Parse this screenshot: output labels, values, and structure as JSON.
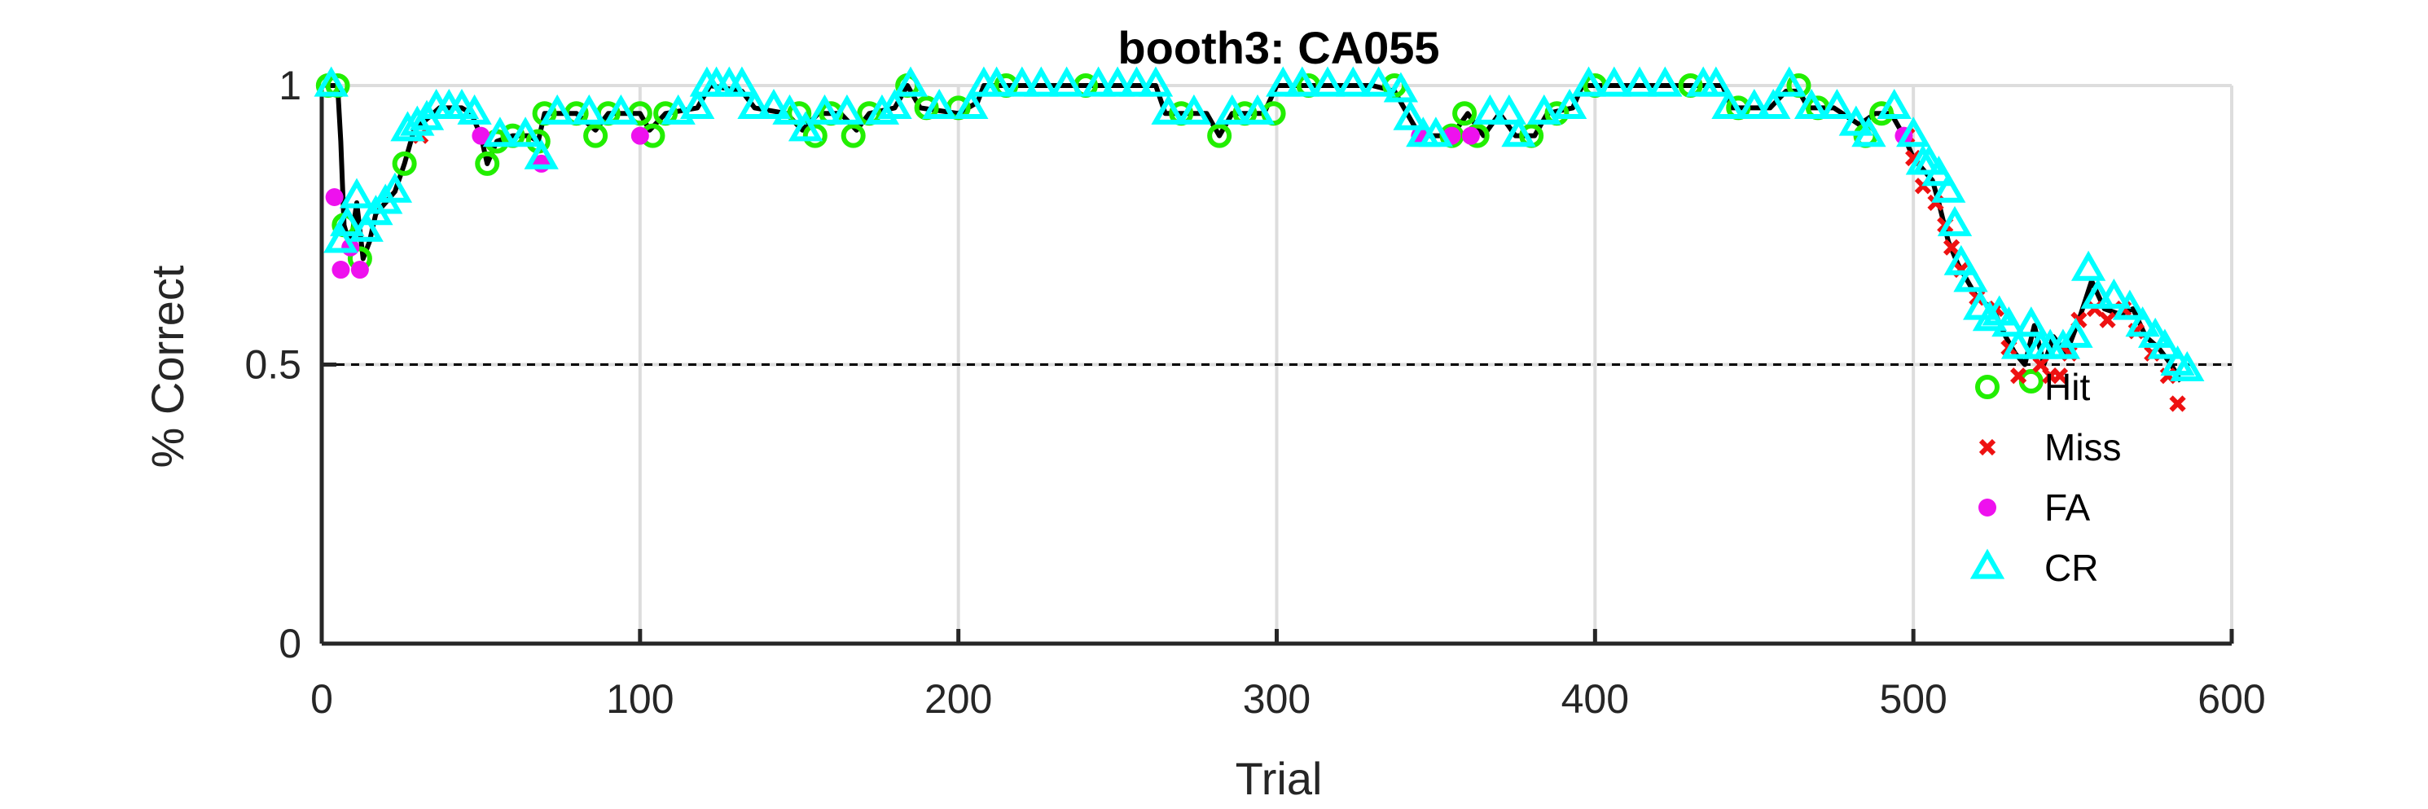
{
  "chart_data": {
    "type": "line",
    "title": "booth3: CA055",
    "xlabel": "Trial",
    "ylabel": "% Correct",
    "xlim": [
      0,
      600
    ],
    "ylim": [
      0,
      1
    ],
    "xticks": [
      0,
      100,
      200,
      300,
      400,
      500,
      600
    ],
    "xtick_labels": [
      "0",
      "100",
      "200",
      "300",
      "400",
      "500",
      "600"
    ],
    "yticks": [
      0,
      0.5,
      1
    ],
    "ytick_labels": [
      "0",
      "0.5",
      "1"
    ],
    "grid": true,
    "reference_line": {
      "y": 0.5,
      "style": "dashed"
    },
    "legend_position": "bottom-right",
    "colors": {
      "line": "#000000",
      "hit": "#22ee00",
      "miss": "#ee1111",
      "fa": "#ee11ee",
      "cr": "#00ffff",
      "grid": "#dddddd",
      "axis": "#262626"
    },
    "legend": [
      {
        "key": "hit",
        "label": "Hit",
        "marker": "circle"
      },
      {
        "key": "miss",
        "label": "Miss",
        "marker": "x"
      },
      {
        "key": "fa",
        "label": "FA",
        "marker": "dot"
      },
      {
        "key": "cr",
        "label": "CR",
        "marker": "triangle"
      }
    ],
    "series": [
      {
        "name": "% Correct",
        "points": [
          [
            2,
            1.0
          ],
          [
            5,
            1.0
          ],
          [
            6,
            0.9
          ],
          [
            7,
            0.75
          ],
          [
            9,
            0.71
          ],
          [
            11,
            0.79
          ],
          [
            13,
            0.69
          ],
          [
            15,
            0.72
          ],
          [
            17,
            0.77
          ],
          [
            20,
            0.79
          ],
          [
            23,
            0.81
          ],
          [
            26,
            0.86
          ],
          [
            29,
            0.92
          ],
          [
            33,
            0.94
          ],
          [
            37,
            0.96
          ],
          [
            44,
            0.96
          ],
          [
            47,
            0.95
          ],
          [
            50,
            0.91
          ],
          [
            52,
            0.86
          ],
          [
            55,
            0.9
          ],
          [
            60,
            0.91
          ],
          [
            65,
            0.91
          ],
          [
            68,
            0.9
          ],
          [
            70,
            0.95
          ],
          [
            80,
            0.95
          ],
          [
            86,
            0.92
          ],
          [
            90,
            0.95
          ],
          [
            100,
            0.95
          ],
          [
            103,
            0.92
          ],
          [
            108,
            0.95
          ],
          [
            118,
            0.96
          ],
          [
            122,
            1.0
          ],
          [
            132,
            0.99
          ],
          [
            136,
            0.96
          ],
          [
            146,
            0.95
          ],
          [
            151,
            0.92
          ],
          [
            156,
            0.95
          ],
          [
            163,
            0.95
          ],
          [
            168,
            0.92
          ],
          [
            172,
            0.95
          ],
          [
            180,
            0.96
          ],
          [
            184,
            1.0
          ],
          [
            188,
            0.96
          ],
          [
            200,
            0.95
          ],
          [
            206,
            0.97
          ],
          [
            208,
            1.0
          ],
          [
            230,
            1.0
          ],
          [
            262,
            1.0
          ],
          [
            265,
            0.95
          ],
          [
            278,
            0.95
          ],
          [
            282,
            0.91
          ],
          [
            286,
            0.95
          ],
          [
            296,
            0.95
          ],
          [
            300,
            1.0
          ],
          [
            330,
            1.0
          ],
          [
            337,
            0.99
          ],
          [
            342,
            0.94
          ],
          [
            345,
            0.91
          ],
          [
            355,
            0.91
          ],
          [
            360,
            0.95
          ],
          [
            365,
            0.91
          ],
          [
            370,
            0.95
          ],
          [
            375,
            0.91
          ],
          [
            381,
            0.91
          ],
          [
            385,
            0.95
          ],
          [
            393,
            0.96
          ],
          [
            396,
            1.0
          ],
          [
            420,
            1.0
          ],
          [
            440,
            1.0
          ],
          [
            443,
            0.96
          ],
          [
            455,
            0.96
          ],
          [
            460,
            0.99
          ],
          [
            464,
            0.99
          ],
          [
            467,
            0.96
          ],
          [
            475,
            0.96
          ],
          [
            483,
            0.93
          ],
          [
            488,
            0.95
          ],
          [
            493,
            0.95
          ],
          [
            497,
            0.91
          ],
          [
            500,
            0.87
          ],
          [
            503,
            0.85
          ],
          [
            506,
            0.83
          ],
          [
            508,
            0.79
          ],
          [
            511,
            0.72
          ],
          [
            514,
            0.68
          ],
          [
            517,
            0.65
          ],
          [
            520,
            0.62
          ],
          [
            525,
            0.6
          ],
          [
            529,
            0.55
          ],
          [
            532,
            0.52
          ],
          [
            535,
            0.5
          ],
          [
            538,
            0.57
          ],
          [
            541,
            0.5
          ],
          [
            544,
            0.55
          ],
          [
            548,
            0.52
          ],
          [
            552,
            0.58
          ],
          [
            556,
            0.65
          ],
          [
            560,
            0.6
          ],
          [
            565,
            0.59
          ],
          [
            569,
            0.6
          ],
          [
            573,
            0.55
          ],
          [
            577,
            0.53
          ],
          [
            581,
            0.5
          ],
          [
            584,
            0.47
          ]
        ]
      },
      {
        "name": "Hit",
        "points": [
          [
            2,
            1.0
          ],
          [
            5,
            1.0
          ],
          [
            7,
            0.75
          ],
          [
            12,
            0.69
          ],
          [
            26,
            0.86
          ],
          [
            52,
            0.86
          ],
          [
            55,
            0.9
          ],
          [
            60,
            0.91
          ],
          [
            68,
            0.9
          ],
          [
            70,
            0.95
          ],
          [
            80,
            0.95
          ],
          [
            86,
            0.91
          ],
          [
            90,
            0.95
          ],
          [
            100,
            0.95
          ],
          [
            104,
            0.91
          ],
          [
            108,
            0.95
          ],
          [
            150,
            0.95
          ],
          [
            155,
            0.91
          ],
          [
            160,
            0.95
          ],
          [
            167,
            0.91
          ],
          [
            172,
            0.95
          ],
          [
            184,
            1.0
          ],
          [
            190,
            0.96
          ],
          [
            200,
            0.96
          ],
          [
            215,
            1.0
          ],
          [
            240,
            1.0
          ],
          [
            270,
            0.95
          ],
          [
            282,
            0.91
          ],
          [
            290,
            0.95
          ],
          [
            299,
            0.95
          ],
          [
            310,
            1.0
          ],
          [
            337,
            1.0
          ],
          [
            355,
            0.91
          ],
          [
            359,
            0.95
          ],
          [
            363,
            0.91
          ],
          [
            380,
            0.91
          ],
          [
            388,
            0.95
          ],
          [
            400,
            1.0
          ],
          [
            430,
            1.0
          ],
          [
            445,
            0.96
          ],
          [
            464,
            1.0
          ],
          [
            470,
            0.96
          ],
          [
            485,
            0.91
          ],
          [
            490,
            0.95
          ],
          [
            537,
            0.47
          ]
        ]
      },
      {
        "name": "Miss",
        "points": [
          [
            31,
            0.91
          ],
          [
            498,
            0.91
          ],
          [
            500,
            0.87
          ],
          [
            503,
            0.82
          ],
          [
            507,
            0.79
          ],
          [
            510,
            0.75
          ],
          [
            512,
            0.71
          ],
          [
            515,
            0.67
          ],
          [
            520,
            0.62
          ],
          [
            526,
            0.6
          ],
          [
            530,
            0.53
          ],
          [
            533,
            0.48
          ],
          [
            540,
            0.5
          ],
          [
            543,
            0.48
          ],
          [
            546,
            0.48
          ],
          [
            549,
            0.52
          ],
          [
            552,
            0.58
          ],
          [
            557,
            0.6
          ],
          [
            561,
            0.58
          ],
          [
            566,
            0.6
          ],
          [
            570,
            0.56
          ],
          [
            575,
            0.52
          ],
          [
            580,
            0.48
          ],
          [
            583,
            0.43
          ]
        ]
      },
      {
        "name": "FA",
        "points": [
          [
            4,
            0.8
          ],
          [
            6,
            0.67
          ],
          [
            9,
            0.71
          ],
          [
            12,
            0.67
          ],
          [
            50,
            0.91
          ],
          [
            69,
            0.86
          ],
          [
            100,
            0.91
          ],
          [
            345,
            0.91
          ],
          [
            355,
            0.91
          ],
          [
            361,
            0.91
          ],
          [
            497,
            0.91
          ]
        ]
      },
      {
        "name": "CR",
        "points": [
          [
            3,
            1.0
          ],
          [
            6,
            0.72
          ],
          [
            8,
            0.75
          ],
          [
            11,
            0.8
          ],
          [
            14,
            0.74
          ],
          [
            17,
            0.77
          ],
          [
            20,
            0.79
          ],
          [
            23,
            0.81
          ],
          [
            27,
            0.92
          ],
          [
            30,
            0.93
          ],
          [
            33,
            0.94
          ],
          [
            36,
            0.96
          ],
          [
            40,
            0.96
          ],
          [
            44,
            0.96
          ],
          [
            48,
            0.95
          ],
          [
            56,
            0.91
          ],
          [
            64,
            0.91
          ],
          [
            69,
            0.87
          ],
          [
            74,
            0.95
          ],
          [
            84,
            0.95
          ],
          [
            94,
            0.95
          ],
          [
            112,
            0.95
          ],
          [
            118,
            0.96
          ],
          [
            121,
            1.0
          ],
          [
            124,
            1.0
          ],
          [
            128,
            1.0
          ],
          [
            132,
            1.0
          ],
          [
            136,
            0.96
          ],
          [
            142,
            0.96
          ],
          [
            147,
            0.95
          ],
          [
            152,
            0.92
          ],
          [
            158,
            0.95
          ],
          [
            165,
            0.95
          ],
          [
            176,
            0.95
          ],
          [
            180,
            0.96
          ],
          [
            185,
            1.0
          ],
          [
            194,
            0.96
          ],
          [
            204,
            0.96
          ],
          [
            208,
            1.0
          ],
          [
            212,
            1.0
          ],
          [
            220,
            1.0
          ],
          [
            226,
            1.0
          ],
          [
            234,
            1.0
          ],
          [
            244,
            1.0
          ],
          [
            250,
            1.0
          ],
          [
            256,
            1.0
          ],
          [
            262,
            1.0
          ],
          [
            266,
            0.95
          ],
          [
            274,
            0.95
          ],
          [
            286,
            0.95
          ],
          [
            294,
            0.95
          ],
          [
            302,
            1.0
          ],
          [
            308,
            1.0
          ],
          [
            316,
            1.0
          ],
          [
            324,
            1.0
          ],
          [
            332,
            1.0
          ],
          [
            339,
            0.99
          ],
          [
            342,
            0.94
          ],
          [
            346,
            0.91
          ],
          [
            350,
            0.91
          ],
          [
            367,
            0.95
          ],
          [
            373,
            0.95
          ],
          [
            376,
            0.91
          ],
          [
            384,
            0.95
          ],
          [
            392,
            0.96
          ],
          [
            398,
            1.0
          ],
          [
            406,
            1.0
          ],
          [
            414,
            1.0
          ],
          [
            422,
            1.0
          ],
          [
            434,
            1.0
          ],
          [
            438,
            1.0
          ],
          [
            442,
            0.96
          ],
          [
            450,
            0.96
          ],
          [
            456,
            0.96
          ],
          [
            461,
            1.0
          ],
          [
            468,
            0.96
          ],
          [
            476,
            0.96
          ],
          [
            482,
            0.93
          ],
          [
            486,
            0.91
          ],
          [
            494,
            0.96
          ],
          [
            500,
            0.91
          ],
          [
            503,
            0.86
          ],
          [
            505,
            0.86
          ],
          [
            508,
            0.84
          ],
          [
            511,
            0.81
          ],
          [
            513,
            0.75
          ],
          [
            515,
            0.68
          ],
          [
            518,
            0.65
          ],
          [
            521,
            0.6
          ],
          [
            524,
            0.58
          ],
          [
            527,
            0.59
          ],
          [
            530,
            0.57
          ],
          [
            533,
            0.53
          ],
          [
            537,
            0.57
          ],
          [
            540,
            0.53
          ],
          [
            543,
            0.53
          ],
          [
            547,
            0.53
          ],
          [
            551,
            0.55
          ],
          [
            555,
            0.67
          ],
          [
            558,
            0.62
          ],
          [
            563,
            0.62
          ],
          [
            568,
            0.6
          ],
          [
            572,
            0.57
          ],
          [
            576,
            0.55
          ],
          [
            579,
            0.53
          ],
          [
            583,
            0.5
          ],
          [
            586,
            0.49
          ]
        ]
      }
    ]
  }
}
